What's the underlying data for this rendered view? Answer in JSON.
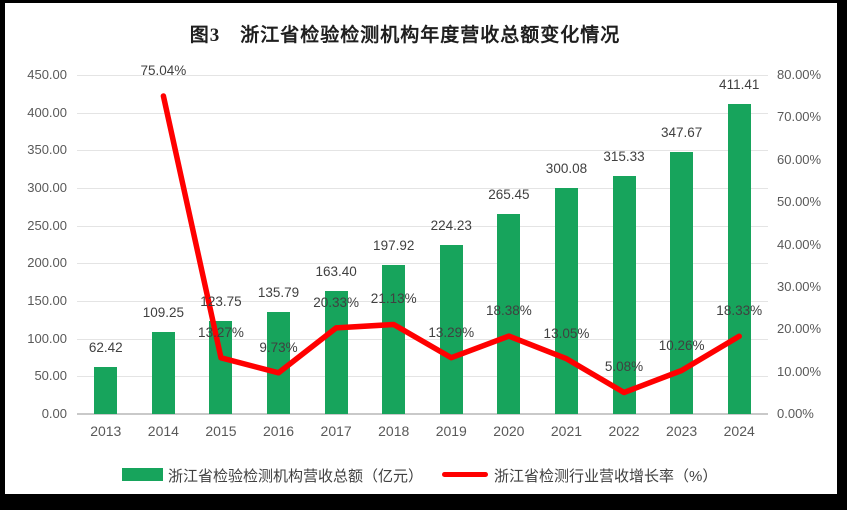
{
  "title": "图3　浙江省检验检测机构年度营收总额变化情况",
  "colors": {
    "bar": "#17a45c",
    "line": "#ff0000",
    "gridline": "#e4e4e4",
    "axis_text": "#595959",
    "label_text": "#404040",
    "frame_border": "#000000",
    "background": "#ffffff"
  },
  "legend": {
    "bar_label": "浙江省检验检测机构营收总额（亿元）",
    "line_label": "浙江省检测行业营收增长率（%）"
  },
  "chart_data": {
    "type": "bar",
    "subtype": "combo-bar-line-dual-axis",
    "title": "图3　浙江省检验检测机构年度营收总额变化情况",
    "categories": [
      "2013",
      "2014",
      "2015",
      "2016",
      "2017",
      "2018",
      "2019",
      "2020",
      "2021",
      "2022",
      "2023",
      "2024"
    ],
    "series": [
      {
        "name": "浙江省检验检测机构营收总额（亿元）",
        "type": "bar",
        "axis": "left",
        "color": "#17a45c",
        "values": [
          62.42,
          109.25,
          123.75,
          135.79,
          163.4,
          197.92,
          224.23,
          265.45,
          300.08,
          315.33,
          347.67,
          411.41
        ]
      },
      {
        "name": "浙江省检测行业营收增长率（%）",
        "type": "line",
        "axis": "right",
        "color": "#ff0000",
        "values": [
          null,
          75.04,
          13.27,
          9.73,
          20.33,
          21.13,
          13.29,
          18.38,
          13.05,
          5.08,
          10.26,
          18.33
        ]
      }
    ],
    "left_axis": {
      "min": 0,
      "max": 450,
      "step": 50,
      "decimals": 2,
      "suffix": ""
    },
    "right_axis": {
      "min": 0,
      "max": 80,
      "step": 10,
      "decimals": 2,
      "suffix": "%"
    },
    "grid": true,
    "data_labels": true,
    "legend_position": "bottom"
  }
}
